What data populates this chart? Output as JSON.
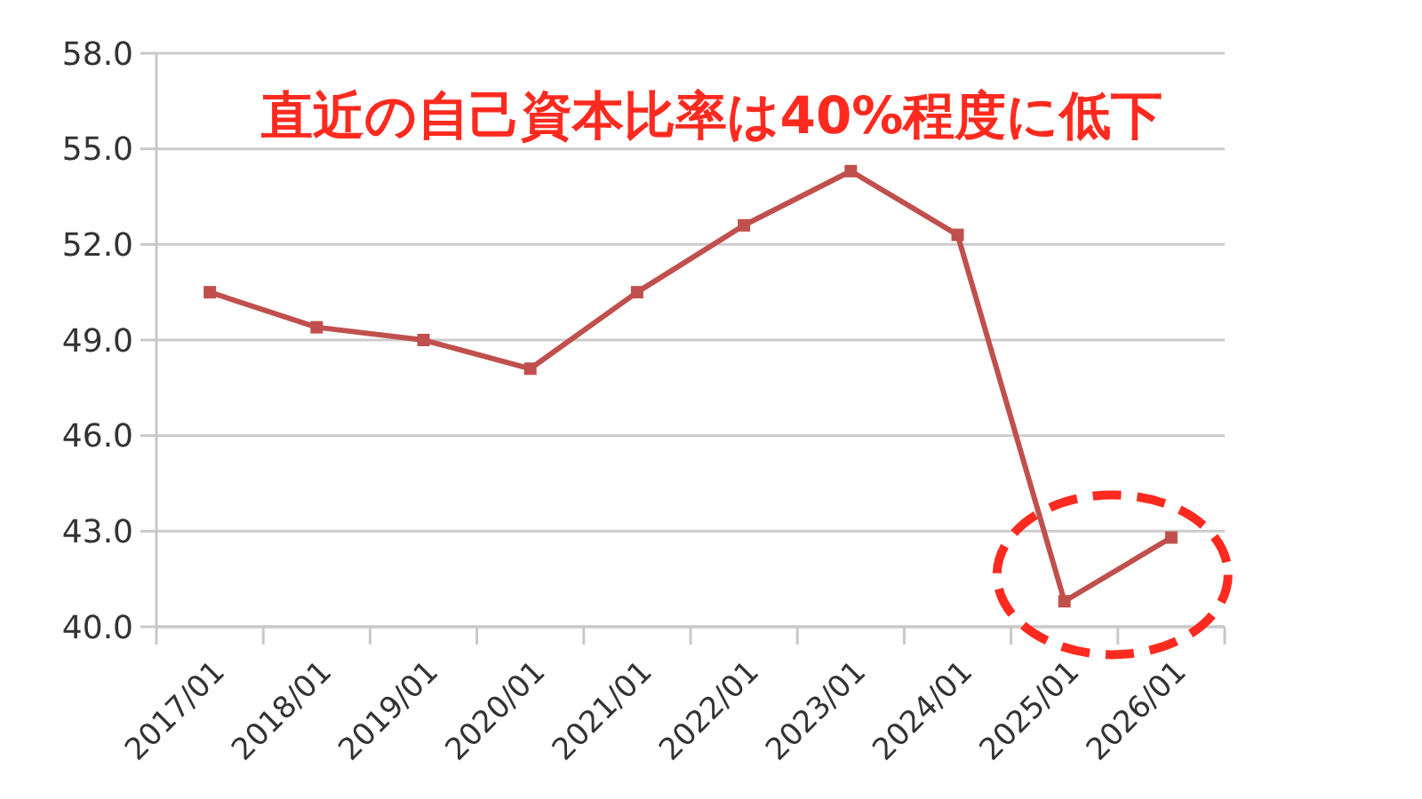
{
  "chart_data": {
    "type": "line",
    "title": "直近の自己資本比率は40%程度に低下",
    "categories": [
      "2017/01",
      "2018/01",
      "2019/01",
      "2020/01",
      "2021/01",
      "2022/01",
      "2023/01",
      "2024/01",
      "2025/01",
      "2026/01"
    ],
    "series": [
      {
        "color": "#c0504d",
        "values": [
          50.5,
          49.4,
          49.0,
          48.1,
          50.5,
          52.6,
          54.3,
          52.3,
          40.8,
          42.8
        ]
      }
    ],
    "ylim": [
      40,
      58
    ],
    "yticks": [
      {
        "value": 40,
        "label": "40.0"
      },
      {
        "value": 43,
        "label": "43.0"
      },
      {
        "value": 46,
        "label": "46.0"
      },
      {
        "value": 49,
        "label": "49.0"
      },
      {
        "value": 52,
        "label": "52.0"
      },
      {
        "value": 55,
        "label": "55.0"
      },
      {
        "value": 58,
        "label": "58.0"
      }
    ],
    "grid": "y",
    "marker": "square",
    "line_style": "solid"
  }
}
